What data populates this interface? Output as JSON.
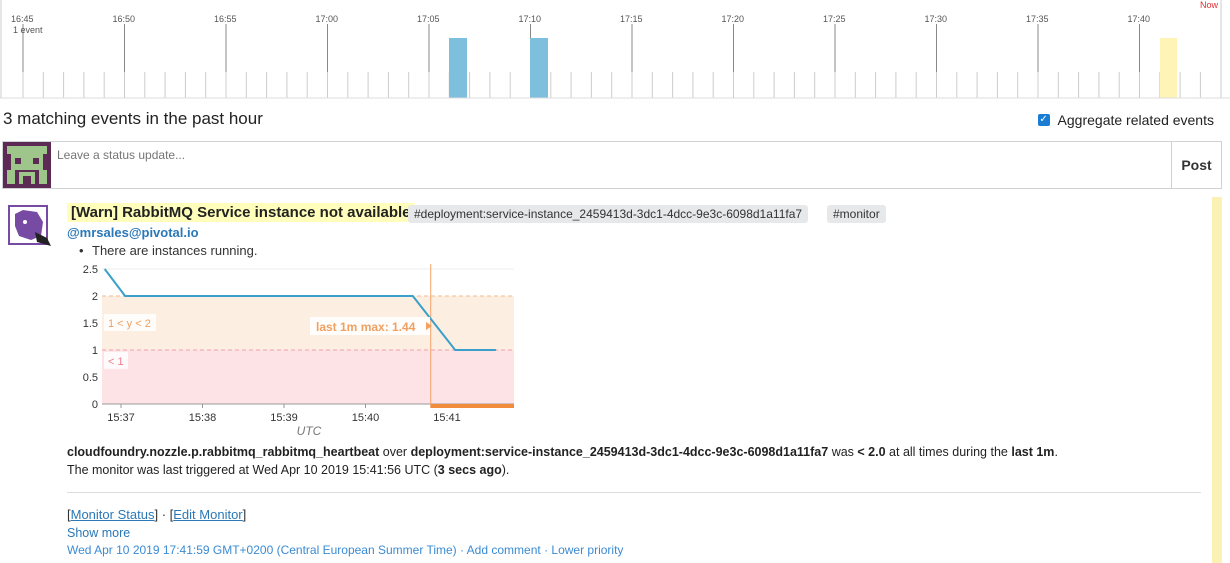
{
  "timeline": {
    "ticks": [
      "16:45",
      "16:50",
      "16:55",
      "17:00",
      "17:05",
      "17:10",
      "17:15",
      "17:20",
      "17:25",
      "17:30",
      "17:35",
      "17:40"
    ],
    "first_count": "1 event",
    "now_label": "Now",
    "event_colors": {
      "blue": "#7cc0de",
      "yellow": "#fef4b5"
    }
  },
  "summary_bar": {
    "matching": "3 matching events in the past hour",
    "aggregate_label": "Aggregate related events",
    "aggregate_checked": true
  },
  "status": {
    "placeholder": "Leave a status update...",
    "post_label": "Post"
  },
  "event": {
    "title": "[Warn] RabbitMQ Service instance not available",
    "tags": [
      "#deployment:service-instance_2459413d-3dc1-4dcc-9e3c-6098d1a11fa7",
      "#monitor"
    ],
    "author": "@mrsales@pivotal.io",
    "bullet": "There are instances running.",
    "metric": "cloudfoundry.nozzle.p.rabbitmq_rabbitmq_heartbeat",
    "over_word": "over",
    "scope": "deployment:service-instance_2459413d-3dc1-4dcc-9e3c-6098d1a11fa7",
    "was_word": "was",
    "condition": "< 2.0",
    "at_all_times": "at all times during the",
    "window": "last 1m",
    "period": ".",
    "triggered_prefix": "The monitor was last triggered at Wed Apr 10 2019 15:41:56 UTC (",
    "triggered_ago": "3 secs ago",
    "triggered_suffix": ").",
    "monitor_status": "Monitor Status",
    "edit_monitor": "Edit Monitor",
    "link_sep": " · ",
    "show_more": "Show more",
    "footer_time": "Wed Apr 10 2019 17:41:59 GMT+0200 (Central European Summer Time)",
    "add_comment": "Add comment",
    "lower_priority": "Lower priority",
    "accent_color": "#fcf1b4"
  },
  "chart_data": {
    "type": "line",
    "x_ticks": [
      "15:37",
      "15:38",
      "15:39",
      "15:40",
      "15:41"
    ],
    "xlabel": "UTC",
    "y_ticks": [
      "2.5",
      "2",
      "1.5",
      "1",
      "0.5",
      "0"
    ],
    "ylim": [
      0,
      2.6
    ],
    "series": [
      {
        "values_x": [
          "15:36.8",
          "15:37.05",
          "15:40.58",
          "15:41.1",
          "15:41.6"
        ],
        "values": [
          2.5,
          2,
          2,
          1,
          1
        ]
      }
    ],
    "bands": [
      {
        "label": "1 < y < 2",
        "from": 1,
        "to": 2,
        "color": "#fdeee2"
      },
      {
        "label": "< 1",
        "from": 0,
        "to": 1,
        "color": "#fde3e6"
      }
    ],
    "annotation": "last 1m max: 1.44"
  }
}
